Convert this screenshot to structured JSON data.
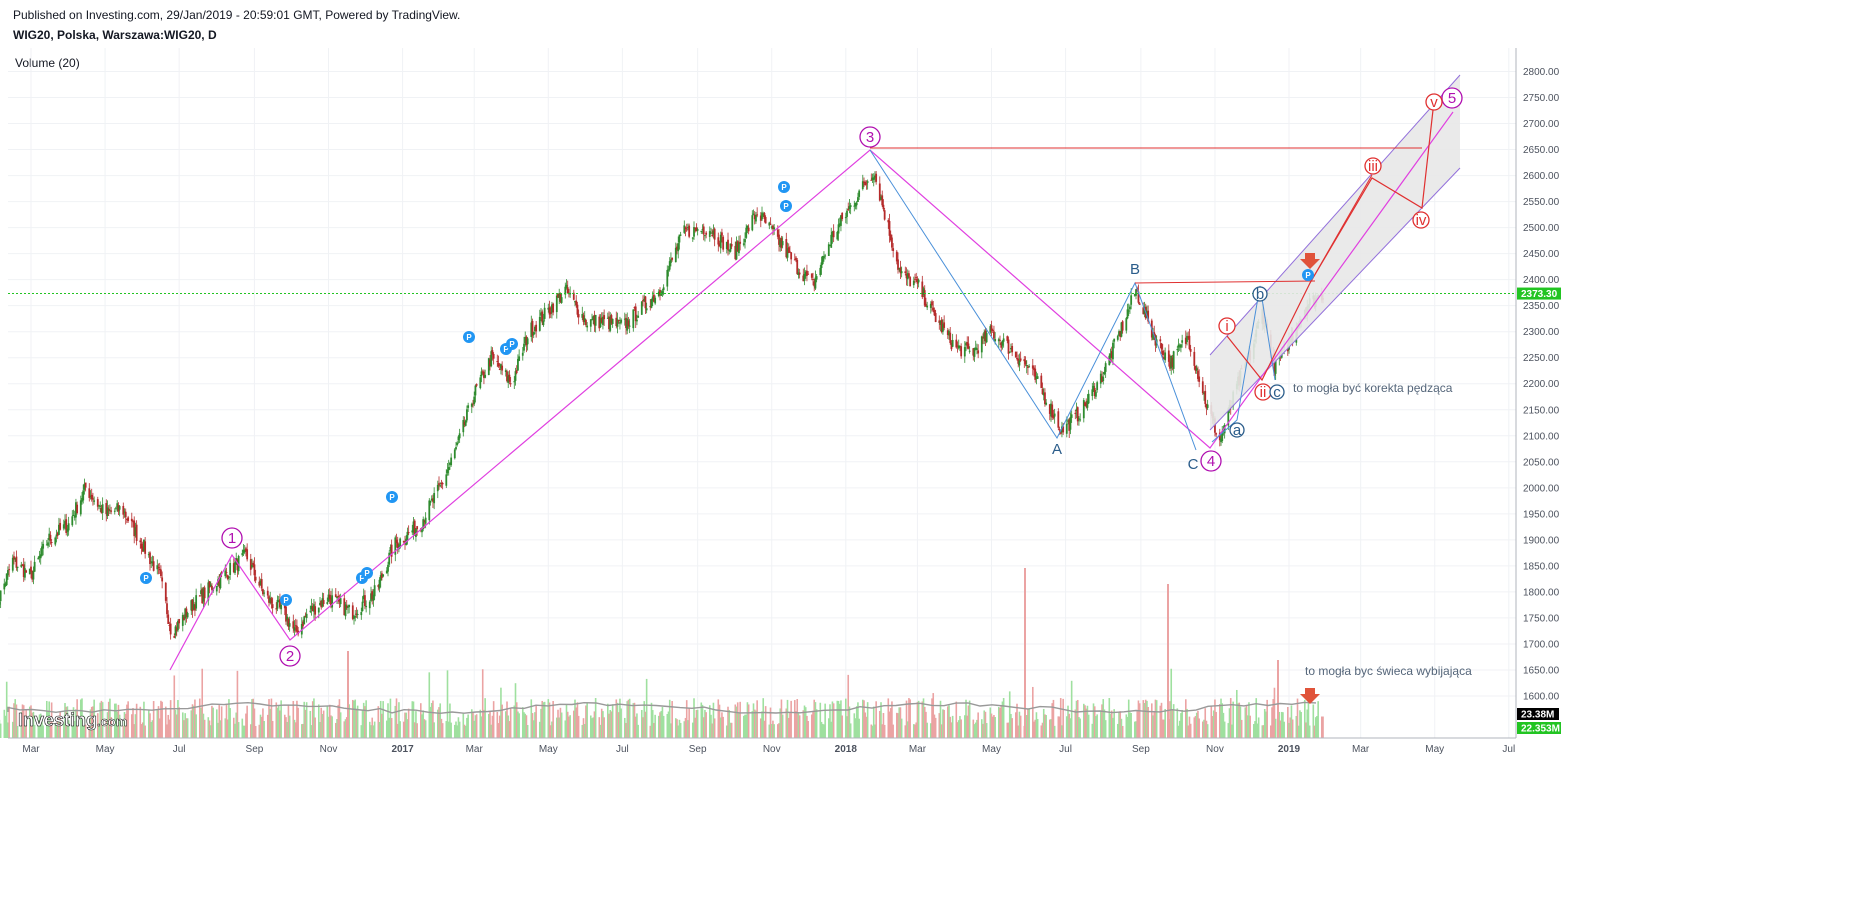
{
  "header": {
    "published": "Published on Investing.com, 29/Jan/2019 - 20:59:01 GMT, Powered by TradingView.",
    "symbol": "WIG20, Polska, Warszawa:WIG20, D"
  },
  "volume_label": "Volume (20)",
  "logo": "Investing",
  "logo_suffix": ".com",
  "colors": {
    "up": "#2e8b2e",
    "down": "#b52a2a",
    "wave_primary": "#e040e0",
    "wave_secondary": "#4a90d9",
    "red_line": "#e03030",
    "last_price": "#22c422",
    "marker": "#2196f3"
  },
  "chart_data": {
    "type": "candlestick",
    "price_axis": {
      "ticks": [
        1600,
        1650,
        1700,
        1750,
        1800,
        1850,
        1900,
        1950,
        2000,
        2050,
        2100,
        2150,
        2200,
        2250,
        2300,
        2350,
        2400,
        2450,
        2500,
        2550,
        2600,
        2650,
        2700,
        2750,
        2800
      ]
    },
    "time_axis": {
      "labels": [
        "Mar",
        "May",
        "Jul",
        "Sep",
        "Nov",
        "2017",
        "Mar",
        "May",
        "Jul",
        "Sep",
        "Nov",
        "2018",
        "Mar",
        "May",
        "Jul",
        "Sep",
        "Nov",
        "2019",
        "Mar",
        "May",
        "Jul"
      ],
      "bold": [
        "2017",
        "2018",
        "2019"
      ]
    },
    "last_price": "2373.30",
    "volume_last": "23.38M",
    "volume_avg": "22.353M",
    "close_path": [
      [
        "2016-02-01",
        1770
      ],
      [
        "2016-02-15",
        1860
      ],
      [
        "2016-03-01",
        1830
      ],
      [
        "2016-03-15",
        1900
      ],
      [
        "2016-04-01",
        1930
      ],
      [
        "2016-04-15",
        2000
      ],
      [
        "2016-05-01",
        1950
      ],
      [
        "2016-05-15",
        1960
      ],
      [
        "2016-06-01",
        1890
      ],
      [
        "2016-06-15",
        1830
      ],
      [
        "2016-06-25",
        1720
      ],
      [
        "2016-07-10",
        1770
      ],
      [
        "2016-08-01",
        1820
      ],
      [
        "2016-08-25",
        1870
      ],
      [
        "2016-09-10",
        1790
      ],
      [
        "2016-09-25",
        1760
      ],
      [
        "2016-10-05",
        1720
      ],
      [
        "2016-10-15",
        1760
      ],
      [
        "2016-11-01",
        1790
      ],
      [
        "2016-11-20",
        1760
      ],
      [
        "2016-12-10",
        1800
      ],
      [
        "2016-12-25",
        1890
      ],
      [
        "2017-01-15",
        1930
      ],
      [
        "2017-02-01",
        2000
      ],
      [
        "2017-02-15",
        2080
      ],
      [
        "2017-03-01",
        2180
      ],
      [
        "2017-03-15",
        2250
      ],
      [
        "2017-04-01",
        2200
      ],
      [
        "2017-04-15",
        2300
      ],
      [
        "2017-05-01",
        2340
      ],
      [
        "2017-05-15",
        2380
      ],
      [
        "2017-06-01",
        2320
      ],
      [
        "2017-06-15",
        2320
      ],
      [
        "2017-07-01",
        2310
      ],
      [
        "2017-07-15",
        2340
      ],
      [
        "2017-08-01",
        2380
      ],
      [
        "2017-08-20",
        2490
      ],
      [
        "2017-09-10",
        2500
      ],
      [
        "2017-10-01",
        2450
      ],
      [
        "2017-10-20",
        2530
      ],
      [
        "2017-11-05",
        2480
      ],
      [
        "2017-11-20",
        2430
      ],
      [
        "2017-12-05",
        2390
      ],
      [
        "2017-12-20",
        2480
      ],
      [
        "2018-01-10",
        2560
      ],
      [
        "2018-01-24",
        2610
      ],
      [
        "2018-02-05",
        2500
      ],
      [
        "2018-02-15",
        2410
      ],
      [
        "2018-03-01",
        2390
      ],
      [
        "2018-03-15",
        2330
      ],
      [
        "2018-04-01",
        2270
      ],
      [
        "2018-04-15",
        2260
      ],
      [
        "2018-05-01",
        2300
      ],
      [
        "2018-05-15",
        2270
      ],
      [
        "2018-06-01",
        2230
      ],
      [
        "2018-06-15",
        2170
      ],
      [
        "2018-06-28",
        2110
      ],
      [
        "2018-07-15",
        2150
      ],
      [
        "2018-08-01",
        2220
      ],
      [
        "2018-08-15",
        2300
      ],
      [
        "2018-08-28",
        2380
      ],
      [
        "2018-09-10",
        2300
      ],
      [
        "2018-09-25",
        2240
      ],
      [
        "2018-10-10",
        2290
      ],
      [
        "2018-10-25",
        2160
      ],
      [
        "2018-11-05",
        2090
      ],
      [
        "2018-11-20",
        2200
      ],
      [
        "2018-12-01",
        2260
      ],
      [
        "2018-12-10",
        2340
      ],
      [
        "2018-12-20",
        2230
      ],
      [
        "2019-01-01",
        2280
      ],
      [
        "2019-01-15",
        2350
      ],
      [
        "2019-01-29",
        2373
      ]
    ],
    "wave_labels": {
      "primary": [
        "1",
        "2",
        "3",
        "4",
        "5"
      ],
      "abc": [
        "A",
        "B",
        "C"
      ],
      "small_abc": [
        "a",
        "b",
        "c"
      ],
      "roman": [
        "i",
        "ii",
        "iii",
        "iv",
        "v"
      ]
    },
    "annotations": [
      "to mogła być korekta pędząca",
      "to mogła byc świeca wybijająca"
    ],
    "marker_label": "P"
  }
}
